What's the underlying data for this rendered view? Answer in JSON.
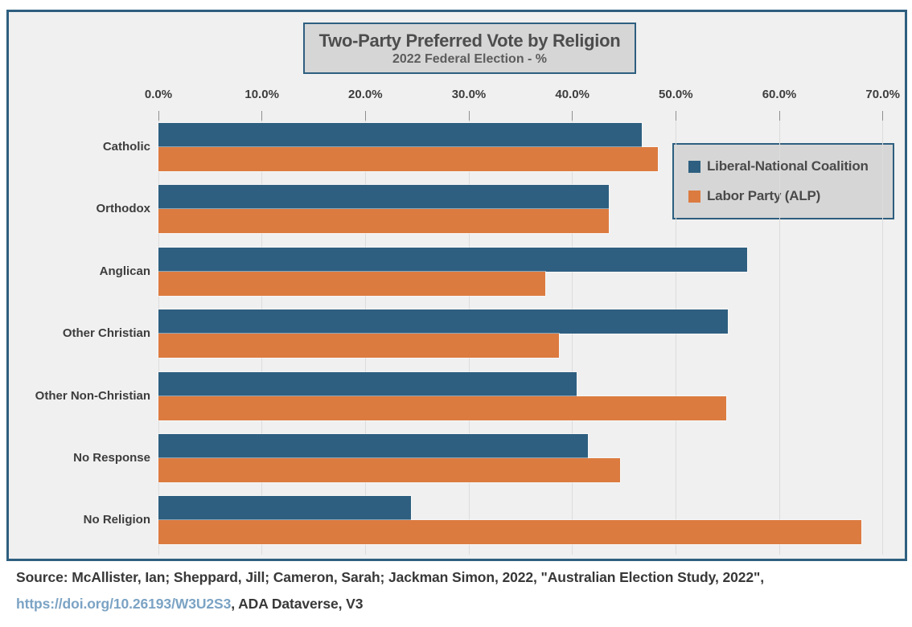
{
  "chart_data": {
    "type": "bar",
    "orientation": "horizontal",
    "title": "Two-Party Preferred Vote by Religion",
    "subtitle": "2022 Federal Election - %",
    "categories": [
      "Catholic",
      "Orthodox",
      "Anglican",
      "Other Christian",
      "Other Non-Christian",
      "No Response",
      "No Religion"
    ],
    "series": [
      {
        "name": "Liberal-National Coalition",
        "color": "#2E5F80",
        "values": [
          46.7,
          43.5,
          56.9,
          55.0,
          40.4,
          41.5,
          24.4
        ]
      },
      {
        "name": "Labor Party (ALP)",
        "color": "#DC7B40",
        "values": [
          48.3,
          43.5,
          37.4,
          38.7,
          54.9,
          44.6,
          67.9
        ]
      }
    ],
    "x_axis": {
      "min": 0,
      "max": 70,
      "tick_interval": 10,
      "tick_labels": [
        "0.0%",
        "10.0%",
        "20.0%",
        "30.0%",
        "40.0%",
        "50.0%",
        "60.0%",
        "70.0%"
      ]
    },
    "grid": true,
    "legend_position": "top-right",
    "axis_position": "top"
  },
  "colors": {
    "chart_border": "#2E5F7F",
    "chart_background": "#F0F0F0",
    "box_fill": "#D6D6D6",
    "link": "#7BA3C4"
  },
  "source": {
    "prefix": "Source: McAllister, Ian; Sheppard, Jill; Cameron, Sarah; Jackman Simon, 2022, \"Australian Election Study, 2022\", ",
    "link": "https://doi.org/10.26193/W3U2S3",
    "suffix": ", ADA Dataverse, V3"
  }
}
